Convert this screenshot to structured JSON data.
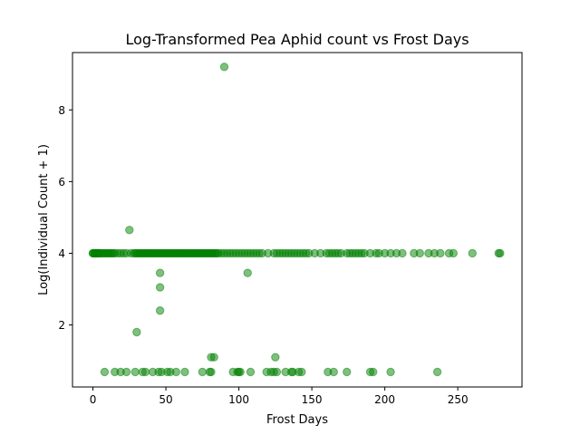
{
  "chart_data": {
    "type": "scatter",
    "title": "Log-Transformed Pea Aphid count vs Frost Days",
    "xlabel": "Frost Days",
    "ylabel": "Log(Individual Count + 1)",
    "xlim": [
      -14,
      294
    ],
    "ylim": [
      0.27,
      9.6
    ],
    "xticks": [
      0,
      50,
      100,
      150,
      200,
      250
    ],
    "yticks": [
      2,
      4,
      6,
      8
    ],
    "grid": false,
    "legend": "none",
    "marker_color": "#008000",
    "marker_alpha": 0.5,
    "series": [
      {
        "x": [
          0,
          0,
          1,
          1,
          2,
          2,
          3,
          3,
          4,
          4,
          5,
          6,
          7,
          8,
          9,
          10,
          11,
          12,
          13,
          14,
          15,
          17,
          19,
          21,
          23,
          26,
          28,
          29,
          30,
          31,
          32,
          33,
          34,
          35,
          36,
          37,
          38,
          39,
          40,
          41,
          42,
          43,
          44,
          45,
          46,
          47,
          48,
          49,
          50,
          51,
          52,
          53,
          54,
          55,
          56,
          57,
          58,
          59,
          60,
          61,
          62,
          63,
          64,
          65,
          66,
          67,
          68,
          69,
          70,
          71,
          72,
          73,
          74,
          75,
          76,
          77,
          78,
          79,
          80,
          81,
          82,
          83,
          84,
          85,
          86,
          88,
          90,
          92,
          94,
          96,
          98,
          100,
          102,
          104,
          106,
          108,
          110,
          112,
          114,
          116,
          120,
          124,
          126,
          128,
          130,
          132,
          134,
          136,
          138,
          140,
          142,
          144,
          146,
          148,
          152,
          156,
          160,
          162,
          164,
          166,
          168,
          170,
          174,
          176,
          178,
          180,
          182,
          184,
          186,
          190,
          194,
          196,
          200,
          204,
          208,
          212,
          220,
          224,
          230,
          234,
          238,
          244,
          247,
          260,
          278,
          279
        ],
        "y": [
          4.0,
          4.0,
          4.0,
          4.0,
          4.0,
          4.0,
          4.0,
          4.0,
          4.0,
          4.0,
          4.0,
          4.0,
          4.0,
          4.0,
          4.0,
          4.0,
          4.0,
          4.0,
          4.0,
          4.0,
          4.0,
          4.0,
          4.0,
          4.0,
          4.0,
          4.0,
          4.0,
          4.0,
          4.0,
          4.0,
          4.0,
          4.0,
          4.0,
          4.0,
          4.0,
          4.0,
          4.0,
          4.0,
          4.0,
          4.0,
          4.0,
          4.0,
          4.0,
          4.0,
          4.0,
          4.0,
          4.0,
          4.0,
          4.0,
          4.0,
          4.0,
          4.0,
          4.0,
          4.0,
          4.0,
          4.0,
          4.0,
          4.0,
          4.0,
          4.0,
          4.0,
          4.0,
          4.0,
          4.0,
          4.0,
          4.0,
          4.0,
          4.0,
          4.0,
          4.0,
          4.0,
          4.0,
          4.0,
          4.0,
          4.0,
          4.0,
          4.0,
          4.0,
          4.0,
          4.0,
          4.0,
          4.0,
          4.0,
          4.0,
          4.0,
          4.0,
          4.0,
          4.0,
          4.0,
          4.0,
          4.0,
          4.0,
          4.0,
          4.0,
          4.0,
          4.0,
          4.0,
          4.0,
          4.0,
          4.0,
          4.0,
          4.0,
          4.0,
          4.0,
          4.0,
          4.0,
          4.0,
          4.0,
          4.0,
          4.0,
          4.0,
          4.0,
          4.0,
          4.0,
          4.0,
          4.0,
          4.0,
          4.0,
          4.0,
          4.0,
          4.0,
          4.0,
          4.0,
          4.0,
          4.0,
          4.0,
          4.0,
          4.0,
          4.0,
          4.0,
          4.0,
          4.0,
          4.0,
          4.0,
          4.0,
          4.0,
          4.0,
          4.0,
          4.0,
          4.0,
          4.0,
          4.0,
          4.0,
          4.0,
          4.0,
          4.0
        ]
      },
      {
        "x": [
          90,
          25,
          46,
          106,
          46,
          46,
          30,
          81,
          83,
          125
        ],
        "y": [
          9.2,
          4.65,
          3.45,
          3.45,
          3.05,
          2.4,
          1.8,
          1.1,
          1.1,
          1.1
        ]
      },
      {
        "x": [
          8,
          15,
          19,
          23,
          29,
          34,
          36,
          41,
          45,
          47,
          51,
          53,
          57,
          63,
          75,
          80,
          81,
          96,
          99,
          100,
          101,
          108,
          119,
          122,
          124,
          126,
          132,
          136,
          137,
          141,
          143,
          161,
          165,
          174,
          190,
          192,
          204,
          236
        ],
        "y": [
          0.69,
          0.69,
          0.69,
          0.69,
          0.69,
          0.69,
          0.69,
          0.69,
          0.69,
          0.69,
          0.69,
          0.69,
          0.69,
          0.69,
          0.69,
          0.69,
          0.69,
          0.69,
          0.69,
          0.69,
          0.69,
          0.69,
          0.69,
          0.69,
          0.69,
          0.69,
          0.69,
          0.69,
          0.69,
          0.69,
          0.69,
          0.69,
          0.69,
          0.69,
          0.69,
          0.69,
          0.69,
          0.69
        ]
      }
    ]
  }
}
